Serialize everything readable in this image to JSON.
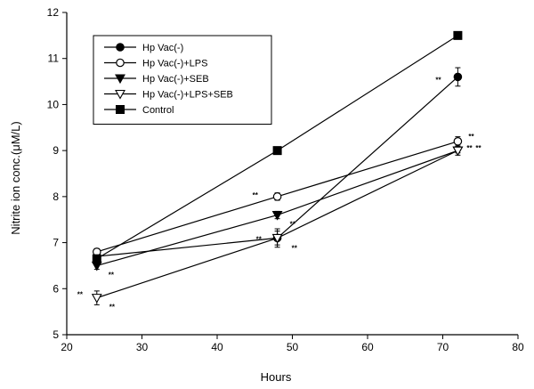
{
  "chart_data": {
    "type": "line",
    "title": "",
    "xlabel": "Hours",
    "ylabel": "Nitrite ion conc.(μM/L)",
    "xlim": [
      20,
      80
    ],
    "ylim": [
      5,
      12
    ],
    "xticks": [
      20,
      30,
      40,
      50,
      60,
      70,
      80
    ],
    "yticks": [
      5,
      6,
      7,
      8,
      9,
      10,
      11,
      12
    ],
    "grid": false,
    "legend_position": "top-left",
    "series": [
      {
        "name": "Hp Vac(-)",
        "marker": "circle-filled",
        "points": [
          {
            "x": 24,
            "y": 6.7,
            "err": 0.08
          },
          {
            "x": 48,
            "y": 7.1,
            "err": 0.15
          },
          {
            "x": 72,
            "y": 10.6,
            "err": 0.2
          }
        ]
      },
      {
        "name": "Hp Vac(-)+LPS",
        "marker": "circle-open",
        "points": [
          {
            "x": 24,
            "y": 6.8,
            "err": 0.07
          },
          {
            "x": 48,
            "y": 8.0,
            "err": 0.08
          },
          {
            "x": 72,
            "y": 9.2,
            "err": 0.1
          }
        ]
      },
      {
        "name": "Hp Vac(-)+SEB",
        "marker": "triangle-down-filled",
        "points": [
          {
            "x": 24,
            "y": 6.5,
            "err": 0.08
          },
          {
            "x": 48,
            "y": 7.6,
            "err": 0.08
          },
          {
            "x": 72,
            "y": 9.0,
            "err": 0.05
          }
        ]
      },
      {
        "name": "Hp Vac(-)+LPS+SEB",
        "marker": "triangle-down-open",
        "points": [
          {
            "x": 24,
            "y": 5.8,
            "err": 0.15
          },
          {
            "x": 48,
            "y": 7.1,
            "err": 0.2
          },
          {
            "x": 72,
            "y": 9.0,
            "err": 0.1
          }
        ]
      },
      {
        "name": "Control",
        "marker": "square-filled",
        "points": [
          {
            "x": 24,
            "y": 6.65,
            "err": 0.05
          },
          {
            "x": 48,
            "y": 9.0,
            "err": 0.05
          },
          {
            "x": 72,
            "y": 11.5,
            "err": 0.05
          }
        ]
      }
    ],
    "annotations": [
      {
        "text": "**",
        "series": "Hp Vac(-)+SEB",
        "x": 24
      },
      {
        "text": "**",
        "series": "Hp Vac(-)+LPS+SEB",
        "x": 24
      },
      {
        "text": "**",
        "series": "Hp Vac(-)+LPS+SEB",
        "x": 24
      },
      {
        "text": "**",
        "series": "Hp Vac(-)+LPS",
        "x": 48
      },
      {
        "text": "**",
        "series": "Hp Vac(-)+SEB",
        "x": 48
      },
      {
        "text": "**",
        "series": "Hp Vac(-)",
        "x": 48
      },
      {
        "text": "**",
        "series": "Hp Vac(-)+LPS+SEB",
        "x": 48
      },
      {
        "text": "**",
        "series": "Hp Vac(-)",
        "x": 72
      },
      {
        "text": "**",
        "series": "Hp Vac(-)+LPS",
        "x": 72
      },
      {
        "text": "**",
        "series": "Hp Vac(-)+SEB",
        "x": 72
      },
      {
        "text": "**",
        "series": "Hp Vac(-)+LPS+SEB",
        "x": 72
      }
    ]
  }
}
